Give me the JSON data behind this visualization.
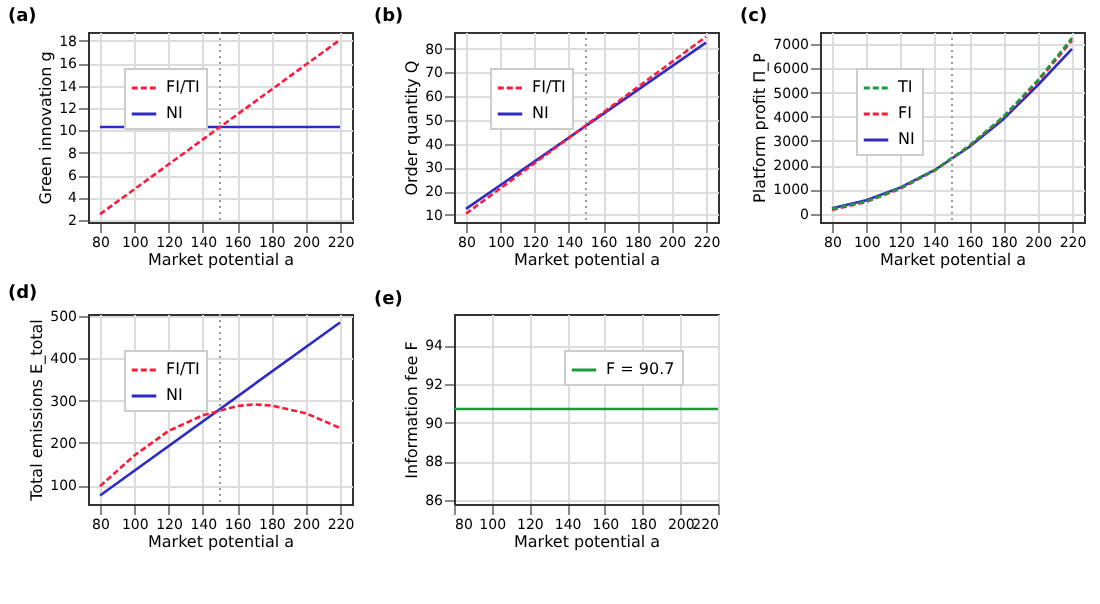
{
  "chart_data": [
    {
      "type": "line",
      "title": "(a)",
      "xlabel": "Market potential a",
      "ylabel": "Green innovation g",
      "x": [
        80,
        220
      ],
      "xlim": [
        73,
        227
      ],
      "xticks": [
        80,
        100,
        120,
        140,
        160,
        180,
        200,
        220
      ],
      "ylim": [
        1.8,
        18.8
      ],
      "yticks": [
        2,
        4,
        6,
        8,
        10,
        12,
        14,
        16,
        18
      ],
      "grid": true,
      "legend": "top left",
      "marker": "none",
      "series": [
        {
          "name": "FI/TI",
          "color": "#ff1a3c",
          "line_style": "dashed",
          "values": [
            2.5,
            18.1
          ]
        },
        {
          "name": "NI",
          "color": "#2b2bc8",
          "line_style": "solid",
          "values": [
            10.3,
            10.3
          ]
        }
      ],
      "ref_lines": [
        {
          "axis": "x",
          "value": 150,
          "color": "#999999",
          "line_style": "dotted"
        }
      ]
    },
    {
      "type": "line",
      "title": "(b)",
      "xlabel": "Market potential a",
      "ylabel": "Order quantity Q",
      "x": [
        80,
        220
      ],
      "xlim": [
        73,
        227
      ],
      "xticks": [
        80,
        100,
        120,
        140,
        160,
        180,
        200,
        220
      ],
      "ylim": [
        7,
        87
      ],
      "yticks": [
        10,
        20,
        30,
        40,
        50,
        60,
        70,
        80
      ],
      "grid": true,
      "legend": "top left",
      "marker": "none",
      "series": [
        {
          "name": "FI/TI",
          "color": "#ff1a3c",
          "line_style": "dashed",
          "values": [
            10.5,
            85
          ]
        },
        {
          "name": "NI",
          "color": "#2b2bc8",
          "line_style": "solid",
          "values": [
            12.5,
            82.5
          ]
        }
      ],
      "ref_lines": [
        {
          "axis": "x",
          "value": 150,
          "color": "#999999",
          "line_style": "dotted"
        }
      ]
    },
    {
      "type": "line",
      "title": "(c)",
      "xlabel": "Market potential a",
      "ylabel": "Platform profit Π_P",
      "x": [
        80,
        100,
        120,
        140,
        160,
        180,
        200,
        220
      ],
      "xlim": [
        73,
        227
      ],
      "xticks": [
        80,
        100,
        120,
        140,
        160,
        180,
        200,
        220
      ],
      "ylim": [
        -350,
        7500
      ],
      "yticks": [
        0,
        1000,
        2000,
        3000,
        4000,
        5000,
        6000,
        7000
      ],
      "grid": true,
      "legend": "top left",
      "marker": "none",
      "series": [
        {
          "name": "TI",
          "color": "#1a9a3c",
          "line_style": "dashed",
          "values": [
            200,
            500,
            1050,
            1800,
            2800,
            4000,
            5500,
            7250
          ]
        },
        {
          "name": "FI",
          "color": "#ff1a3c",
          "line_style": "dashed",
          "values": [
            150,
            480,
            1030,
            1780,
            2780,
            3980,
            5450,
            7150
          ]
        },
        {
          "name": "NI",
          "color": "#2b2bc8",
          "line_style": "solid",
          "values": [
            220,
            550,
            1080,
            1800,
            2750,
            3900,
            5300,
            6800
          ]
        }
      ],
      "ref_lines": [
        {
          "axis": "x",
          "value": 150,
          "color": "#999999",
          "line_style": "dotted"
        }
      ]
    },
    {
      "type": "line",
      "title": "(d)",
      "xlabel": "Market potential a",
      "ylabel": "Total emissions E_total",
      "x": [
        80,
        100,
        120,
        140,
        160,
        170,
        180,
        200,
        220
      ],
      "xlim": [
        73,
        227
      ],
      "xticks": [
        80,
        100,
        120,
        140,
        160,
        180,
        200,
        220
      ],
      "ylim": [
        55,
        505
      ],
      "yticks": [
        100,
        200,
        300,
        400,
        500
      ],
      "grid": true,
      "legend": "top left",
      "marker": "none",
      "series": [
        {
          "name": "FI/TI",
          "color": "#ff1a3c",
          "line_style": "dashed",
          "values": [
            97,
            170,
            228,
            265,
            287,
            291,
            288,
            270,
            235
          ]
        },
        {
          "name": "NI",
          "color": "#2b2bc8",
          "line_style": "solid",
          "x": [
            80,
            220
          ],
          "values": [
            75,
            485
          ]
        }
      ],
      "ref_lines": [
        {
          "axis": "x",
          "value": 150,
          "color": "#999999",
          "line_style": "dotted"
        }
      ]
    },
    {
      "type": "line",
      "title": "(e)",
      "xlabel": "Market potential a",
      "ylabel": "Information fee F",
      "x": [
        80,
        220
      ],
      "xlim": [
        80,
        220
      ],
      "xticks": [
        80,
        100,
        120,
        140,
        160,
        180,
        200,
        220
      ],
      "ylim": [
        85.8,
        95.6
      ],
      "yticks": [
        86,
        88,
        90,
        92,
        94
      ],
      "grid": true,
      "legend": "top right",
      "marker": "none",
      "series": [
        {
          "name": "F = 90.7",
          "color": "#1a9a3c",
          "line_style": "solid",
          "values": [
            90.7,
            90.7
          ]
        }
      ]
    }
  ]
}
